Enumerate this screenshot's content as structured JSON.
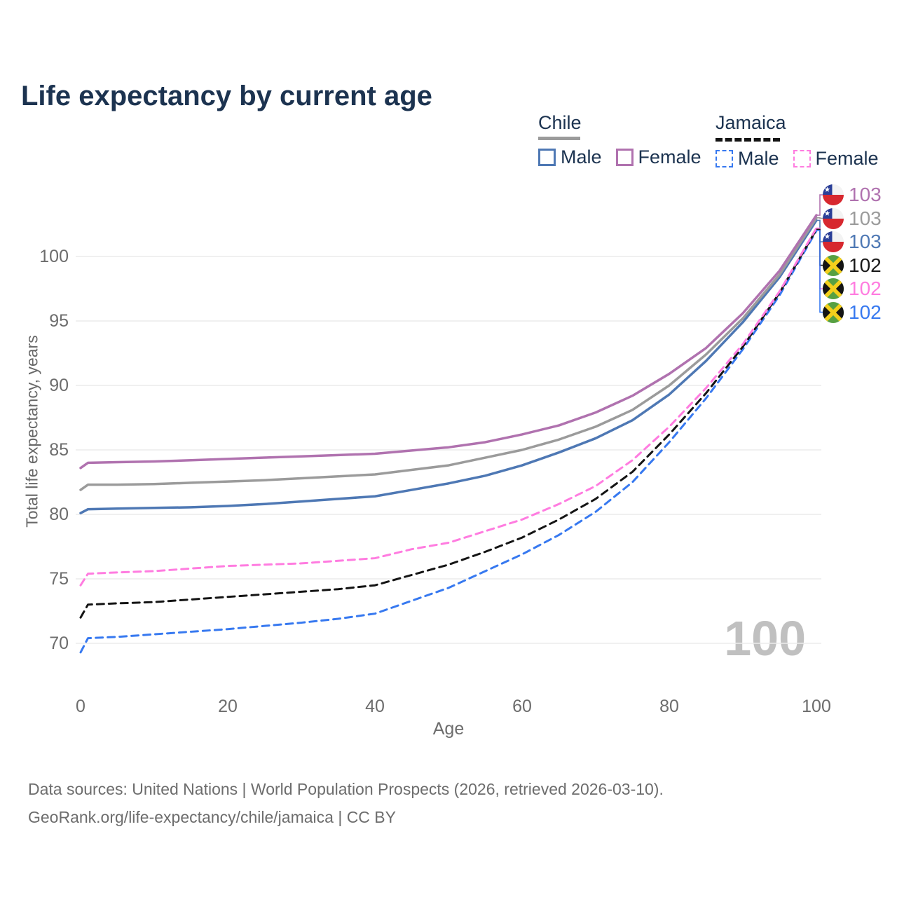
{
  "title": "Life expectancy by current age",
  "legend": {
    "chile": {
      "label": "Chile",
      "male": "Male",
      "female": "Female"
    },
    "jamaica": {
      "label": "Jamaica",
      "male": "Male",
      "female": "Female"
    }
  },
  "axes": {
    "y_label": "Total life expectancy, years",
    "x_label": "Age",
    "y_ticks": [
      70,
      75,
      80,
      85,
      90,
      95,
      100
    ],
    "x_ticks": [
      0,
      20,
      40,
      60,
      80,
      100
    ]
  },
  "watermark": "100",
  "end_labels": [
    {
      "flag": "chile",
      "value": "103",
      "color": "#b072af"
    },
    {
      "flag": "chile",
      "value": "103",
      "color": "#9b9b9b"
    },
    {
      "flag": "chile",
      "value": "103",
      "color": "#4e78b4"
    },
    {
      "flag": "jamaica",
      "value": "102",
      "color": "#1a1a1a"
    },
    {
      "flag": "jamaica",
      "value": "102",
      "color": "#ff7ce0"
    },
    {
      "flag": "jamaica",
      "value": "102",
      "color": "#3779f0"
    }
  ],
  "footer": {
    "line1": "Data sources: United Nations | World Population Prospects (2026, retrieved 2026-03-10).",
    "line2": "GeoRank.org/life-expectancy/chile/jamaica | CC BY"
  },
  "chart_data": {
    "type": "line",
    "title": "Life expectancy by current age",
    "xlabel": "Age",
    "ylabel": "Total life expectancy, years",
    "xlim": [
      0,
      100
    ],
    "ylim": [
      68,
      106
    ],
    "grid": "horizontal-only",
    "legend_position": "top-right",
    "x": [
      0,
      1,
      5,
      10,
      15,
      20,
      25,
      30,
      35,
      40,
      45,
      50,
      55,
      60,
      65,
      70,
      75,
      80,
      85,
      90,
      95,
      100
    ],
    "series": [
      {
        "name": "Chile Female",
        "color": "#b072af",
        "style": "solid",
        "values": [
          83.6,
          84.0,
          84.05,
          84.1,
          84.2,
          84.3,
          84.4,
          84.5,
          84.6,
          84.7,
          84.95,
          85.2,
          85.6,
          86.2,
          86.9,
          87.9,
          89.2,
          90.9,
          92.9,
          95.6,
          98.9,
          103.2
        ]
      },
      {
        "name": "Chile (both sexes)",
        "color": "#9b9b9b",
        "style": "solid",
        "values": [
          81.9,
          82.3,
          82.3,
          82.35,
          82.45,
          82.55,
          82.65,
          82.8,
          82.95,
          83.1,
          83.45,
          83.8,
          84.4,
          85.0,
          85.8,
          86.8,
          88.1,
          90.0,
          92.4,
          95.2,
          98.6,
          103.0
        ]
      },
      {
        "name": "Chile Male",
        "color": "#4e78b4",
        "style": "solid",
        "values": [
          80.1,
          80.4,
          80.45,
          80.5,
          80.55,
          80.65,
          80.8,
          81.0,
          81.2,
          81.4,
          81.9,
          82.4,
          83.0,
          83.8,
          84.8,
          85.9,
          87.3,
          89.3,
          91.9,
          94.9,
          98.4,
          102.8
        ]
      },
      {
        "name": "Jamaica Female",
        "color": "#ff7ce0",
        "style": "dashed",
        "values": [
          74.5,
          75.4,
          75.5,
          75.6,
          75.8,
          76.0,
          76.1,
          76.2,
          76.4,
          76.6,
          77.3,
          77.8,
          78.7,
          79.6,
          80.8,
          82.2,
          84.2,
          86.8,
          89.8,
          93.2,
          97.3,
          102.2
        ]
      },
      {
        "name": "Jamaica (both sexes)",
        "color": "#141414",
        "style": "dashed",
        "values": [
          72.0,
          73.0,
          73.1,
          73.2,
          73.4,
          73.6,
          73.8,
          74.0,
          74.2,
          74.5,
          75.3,
          76.1,
          77.1,
          78.2,
          79.6,
          81.2,
          83.3,
          86.2,
          89.4,
          93.0,
          97.2,
          102.1
        ]
      },
      {
        "name": "Jamaica Male",
        "color": "#3779f0",
        "style": "dashed",
        "values": [
          69.3,
          70.4,
          70.5,
          70.7,
          70.9,
          71.1,
          71.35,
          71.6,
          71.9,
          72.3,
          73.3,
          74.3,
          75.6,
          76.9,
          78.4,
          80.2,
          82.5,
          85.6,
          89.0,
          92.8,
          97.0,
          102.0
        ]
      }
    ]
  }
}
